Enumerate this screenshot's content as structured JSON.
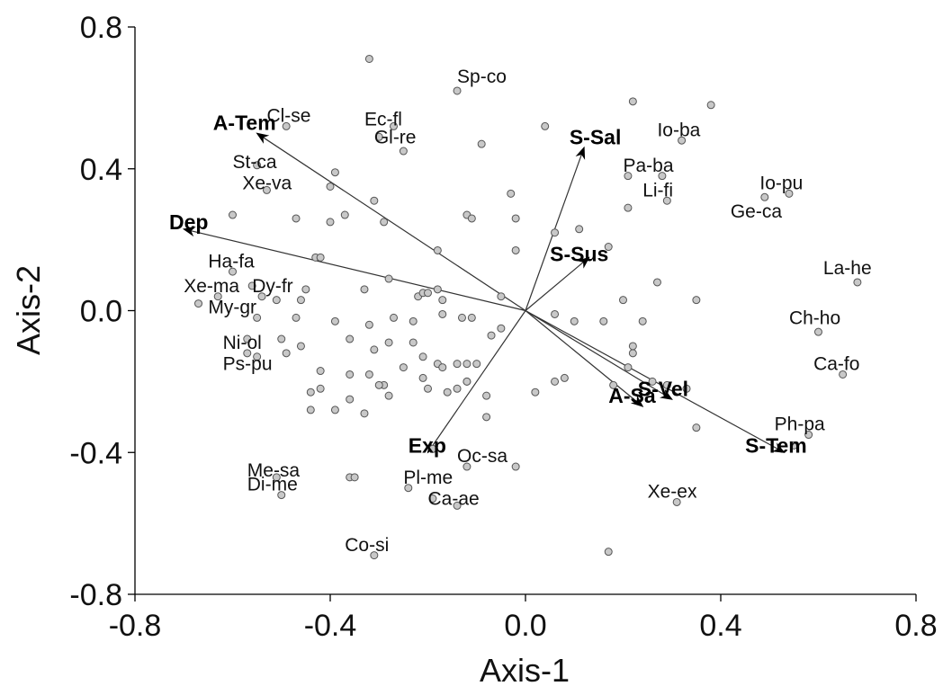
{
  "chart_data": {
    "type": "scatter",
    "xlabel": "Axis-1",
    "ylabel": "Axis-2",
    "xlim": [
      -0.8,
      0.8
    ],
    "ylim": [
      -0.8,
      0.8
    ],
    "xticks": [
      "-0.8",
      "-0.4",
      "0.0",
      "0.4",
      "0.8"
    ],
    "yticks": [
      "0.8",
      "0.4",
      "0.0",
      "-0.4",
      "-0.8"
    ],
    "xtick_values": [
      -0.8,
      -0.4,
      0.0,
      0.4,
      0.8
    ],
    "ytick_values": [
      0.8,
      0.4,
      0.0,
      -0.4,
      -0.8
    ],
    "grid": false,
    "colors": {
      "point_fill": "#c8c8c8",
      "point_stroke": "#555555",
      "vector": "#333333"
    },
    "points": [
      [
        -0.32,
        0.71
      ],
      [
        -0.14,
        0.62
      ],
      [
        0.22,
        0.59
      ],
      [
        0.38,
        0.58
      ],
      [
        0.32,
        0.48
      ],
      [
        0.04,
        0.52
      ],
      [
        -0.09,
        0.47
      ],
      [
        -0.49,
        0.52
      ],
      [
        -0.27,
        0.52
      ],
      [
        -0.3,
        0.49
      ],
      [
        -0.25,
        0.45
      ],
      [
        -0.55,
        0.41
      ],
      [
        -0.53,
        0.34
      ],
      [
        -0.39,
        0.39
      ],
      [
        -0.4,
        0.35
      ],
      [
        -0.31,
        0.31
      ],
      [
        -0.03,
        0.33
      ],
      [
        0.21,
        0.38
      ],
      [
        0.28,
        0.38
      ],
      [
        0.29,
        0.31
      ],
      [
        0.49,
        0.32
      ],
      [
        0.54,
        0.33
      ],
      [
        -0.6,
        0.27
      ],
      [
        -0.47,
        0.26
      ],
      [
        -0.4,
        0.25
      ],
      [
        -0.37,
        0.27
      ],
      [
        -0.29,
        0.25
      ],
      [
        -0.12,
        0.27
      ],
      [
        -0.11,
        0.26
      ],
      [
        -0.02,
        0.26
      ],
      [
        0.06,
        0.22
      ],
      [
        0.11,
        0.23
      ],
      [
        0.21,
        0.29
      ],
      [
        -0.18,
        0.17
      ],
      [
        -0.02,
        0.17
      ],
      [
        0.17,
        0.18
      ],
      [
        -0.43,
        0.15
      ],
      [
        -0.42,
        0.15
      ],
      [
        -0.6,
        0.11
      ],
      [
        -0.56,
        0.07
      ],
      [
        -0.54,
        0.04
      ],
      [
        -0.63,
        0.04
      ],
      [
        -0.67,
        0.02
      ],
      [
        -0.51,
        0.03
      ],
      [
        -0.46,
        0.03
      ],
      [
        -0.45,
        0.06
      ],
      [
        -0.33,
        0.06
      ],
      [
        -0.28,
        0.09
      ],
      [
        -0.22,
        0.04
      ],
      [
        -0.21,
        0.05
      ],
      [
        -0.2,
        0.05
      ],
      [
        -0.18,
        0.06
      ],
      [
        -0.17,
        0.03
      ],
      [
        -0.05,
        0.04
      ],
      [
        0.2,
        0.03
      ],
      [
        0.27,
        0.08
      ],
      [
        0.35,
        0.03
      ],
      [
        -0.55,
        -0.02
      ],
      [
        -0.47,
        -0.02
      ],
      [
        -0.39,
        -0.03
      ],
      [
        -0.32,
        -0.04
      ],
      [
        -0.27,
        -0.02
      ],
      [
        -0.23,
        -0.03
      ],
      [
        -0.17,
        -0.01
      ],
      [
        -0.13,
        -0.02
      ],
      [
        -0.11,
        -0.02
      ],
      [
        0.06,
        -0.01
      ],
      [
        0.1,
        -0.03
      ],
      [
        0.16,
        -0.03
      ],
      [
        0.24,
        -0.03
      ],
      [
        -0.57,
        -0.08
      ],
      [
        -0.5,
        -0.08
      ],
      [
        -0.49,
        -0.12
      ],
      [
        -0.46,
        -0.1
      ],
      [
        -0.36,
        -0.08
      ],
      [
        -0.31,
        -0.11
      ],
      [
        -0.28,
        -0.09
      ],
      [
        -0.23,
        -0.09
      ],
      [
        -0.21,
        -0.13
      ],
      [
        -0.18,
        -0.15
      ],
      [
        -0.14,
        -0.15
      ],
      [
        -0.07,
        -0.07
      ],
      [
        -0.05,
        -0.05
      ],
      [
        -0.55,
        -0.13
      ],
      [
        -0.57,
        -0.12
      ],
      [
        -0.42,
        -0.17
      ],
      [
        -0.36,
        -0.18
      ],
      [
        -0.32,
        -0.18
      ],
      [
        -0.29,
        -0.21
      ],
      [
        -0.25,
        -0.16
      ],
      [
        -0.21,
        -0.19
      ],
      [
        -0.17,
        -0.16
      ],
      [
        -0.14,
        -0.22
      ],
      [
        -0.12,
        -0.15
      ],
      [
        -0.12,
        -0.2
      ],
      [
        -0.1,
        -0.15
      ],
      [
        0.22,
        -0.12
      ],
      [
        0.22,
        -0.1
      ],
      [
        0.21,
        -0.16
      ],
      [
        0.26,
        -0.2
      ],
      [
        0.29,
        -0.21
      ],
      [
        0.33,
        -0.22
      ],
      [
        -0.44,
        -0.23
      ],
      [
        -0.42,
        -0.22
      ],
      [
        -0.36,
        -0.25
      ],
      [
        -0.3,
        -0.21
      ],
      [
        -0.28,
        -0.24
      ],
      [
        -0.2,
        -0.22
      ],
      [
        -0.16,
        -0.23
      ],
      [
        -0.12,
        -0.2
      ],
      [
        -0.08,
        -0.24
      ],
      [
        0.02,
        -0.23
      ],
      [
        0.06,
        -0.2
      ],
      [
        0.08,
        -0.19
      ],
      [
        0.18,
        -0.21
      ],
      [
        -0.44,
        -0.28
      ],
      [
        -0.39,
        -0.28
      ],
      [
        -0.33,
        -0.29
      ],
      [
        -0.08,
        -0.3
      ],
      [
        0.35,
        -0.33
      ],
      [
        0.55,
        -0.38
      ],
      [
        0.58,
        -0.35
      ],
      [
        -0.19,
        -0.39
      ],
      [
        -0.12,
        -0.44
      ],
      [
        -0.02,
        -0.44
      ],
      [
        -0.51,
        -0.47
      ],
      [
        -0.5,
        -0.52
      ],
      [
        -0.36,
        -0.47
      ],
      [
        -0.35,
        -0.47
      ],
      [
        -0.24,
        -0.5
      ],
      [
        -0.19,
        -0.53
      ],
      [
        -0.14,
        -0.55
      ],
      [
        0.31,
        -0.54
      ],
      [
        -0.31,
        -0.69
      ],
      [
        0.17,
        -0.68
      ],
      [
        0.6,
        -0.06
      ],
      [
        0.65,
        -0.18
      ],
      [
        0.68,
        0.08
      ]
    ],
    "species_labels": [
      {
        "text": "Sp-co",
        "x": -0.14,
        "y": 0.66
      },
      {
        "text": "Cl-se",
        "x": -0.53,
        "y": 0.55
      },
      {
        "text": "Ec-fl",
        "x": -0.33,
        "y": 0.54
      },
      {
        "text": "Gl-re",
        "x": -0.31,
        "y": 0.49
      },
      {
        "text": "Io-ba",
        "x": 0.27,
        "y": 0.51
      },
      {
        "text": "Pa-ba",
        "x": 0.2,
        "y": 0.41
      },
      {
        "text": "Li-fi",
        "x": 0.24,
        "y": 0.34
      },
      {
        "text": "Io-pu",
        "x": 0.48,
        "y": 0.36
      },
      {
        "text": "Ge-ca",
        "x": 0.42,
        "y": 0.28
      },
      {
        "text": "St-ca",
        "x": -0.6,
        "y": 0.42
      },
      {
        "text": "Xe-va",
        "x": -0.58,
        "y": 0.36
      },
      {
        "text": "Ha-fa",
        "x": -0.65,
        "y": 0.14
      },
      {
        "text": "Xe-ma",
        "x": -0.7,
        "y": 0.07
      },
      {
        "text": "Dy-fr",
        "x": -0.56,
        "y": 0.07
      },
      {
        "text": "My-gr",
        "x": -0.65,
        "y": 0.01
      },
      {
        "text": "Ni-ol",
        "x": -0.62,
        "y": -0.09
      },
      {
        "text": "Ps-pu",
        "x": -0.62,
        "y": -0.15
      },
      {
        "text": "La-he",
        "x": 0.61,
        "y": 0.12
      },
      {
        "text": "Ch-ho",
        "x": 0.54,
        "y": -0.02
      },
      {
        "text": "Ca-fo",
        "x": 0.59,
        "y": -0.15
      },
      {
        "text": "Ph-pa",
        "x": 0.51,
        "y": -0.32
      },
      {
        "text": "Oc-sa",
        "x": -0.14,
        "y": -0.41
      },
      {
        "text": "Pl-me",
        "x": -0.25,
        "y": -0.47
      },
      {
        "text": "Ca-ae",
        "x": -0.2,
        "y": -0.53
      },
      {
        "text": "Me-sa",
        "x": -0.57,
        "y": -0.45
      },
      {
        "text": "Di-me",
        "x": -0.57,
        "y": -0.49
      },
      {
        "text": "Xe-ex",
        "x": 0.25,
        "y": -0.51
      },
      {
        "text": "Co-si",
        "x": -0.37,
        "y": -0.66
      }
    ],
    "vectors": [
      {
        "name": "A-Tem",
        "x": -0.55,
        "y": 0.5,
        "label_x": -0.64,
        "label_y": 0.53
      },
      {
        "name": "Dep",
        "x": -0.7,
        "y": 0.23,
        "label_x": -0.73,
        "label_y": 0.25
      },
      {
        "name": "S-Sal",
        "x": 0.12,
        "y": 0.46,
        "label_x": 0.09,
        "label_y": 0.49
      },
      {
        "name": "S-Sus",
        "x": 0.13,
        "y": 0.15,
        "label_x": 0.05,
        "label_y": 0.16
      },
      {
        "name": "A-Sa",
        "x": 0.24,
        "y": -0.27,
        "label_x": 0.17,
        "label_y": -0.24
      },
      {
        "name": "S-Vel",
        "x": 0.3,
        "y": -0.25,
        "label_x": 0.23,
        "label_y": -0.22
      },
      {
        "name": "S-Tem",
        "x": 0.53,
        "y": -0.4,
        "label_x": 0.45,
        "label_y": -0.38
      },
      {
        "name": "Exp",
        "x": -0.2,
        "y": -0.4,
        "label_x": -0.24,
        "label_y": -0.38
      }
    ]
  }
}
